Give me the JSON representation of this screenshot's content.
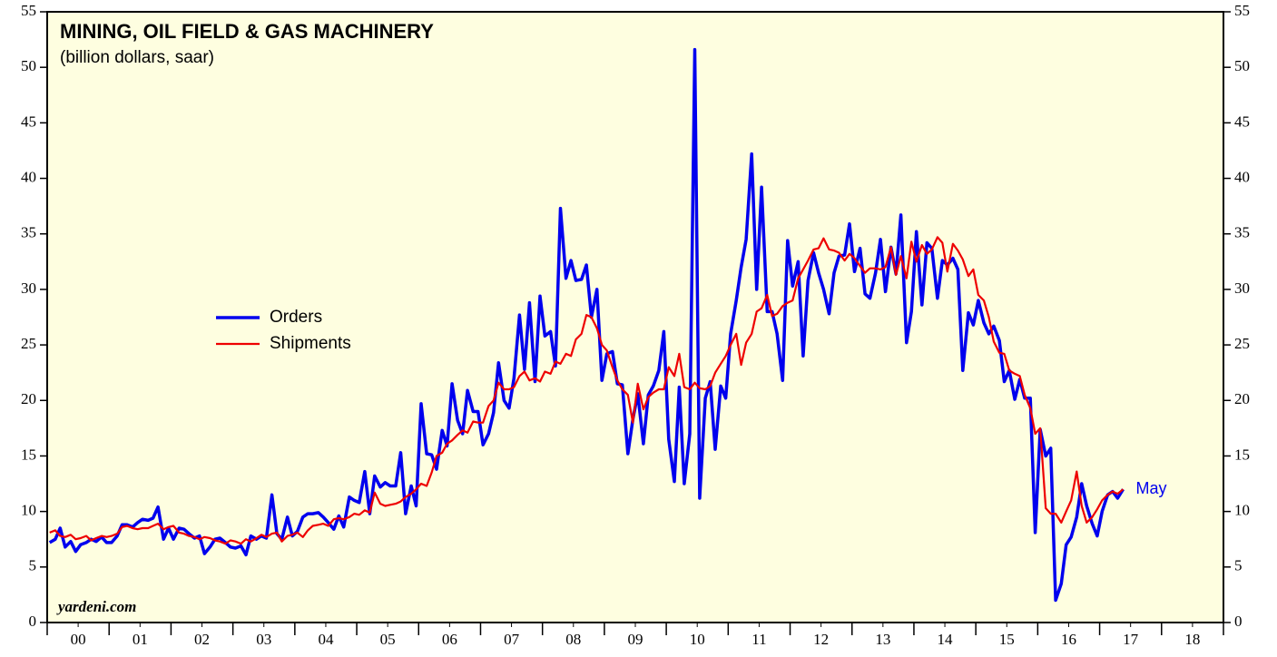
{
  "chart_data": {
    "type": "line",
    "title": "MINING, OIL FIELD & GAS MACHINERY",
    "subtitle": "(billion dollars, saar)",
    "annotations": [
      "yardeni.com",
      "May"
    ],
    "background": "#fefee0",
    "legend": "upper left",
    "xlim": [
      2000,
      2019
    ],
    "xticks": [
      {
        "value": 2000.5,
        "label": "00"
      },
      {
        "value": 2001.5,
        "label": "01"
      },
      {
        "value": 2002.5,
        "label": "02"
      },
      {
        "value": 2003.5,
        "label": "03"
      },
      {
        "value": 2004.5,
        "label": "04"
      },
      {
        "value": 2005.5,
        "label": "05"
      },
      {
        "value": 2006.5,
        "label": "06"
      },
      {
        "value": 2007.5,
        "label": "07"
      },
      {
        "value": 2008.5,
        "label": "08"
      },
      {
        "value": 2009.5,
        "label": "09"
      },
      {
        "value": 2010.5,
        "label": "10"
      },
      {
        "value": 2011.5,
        "label": "11"
      },
      {
        "value": 2012.5,
        "label": "12"
      },
      {
        "value": 2013.5,
        "label": "13"
      },
      {
        "value": 2014.5,
        "label": "14"
      },
      {
        "value": 2015.5,
        "label": "15"
      },
      {
        "value": 2016.5,
        "label": "16"
      },
      {
        "value": 2017.5,
        "label": "17"
      },
      {
        "value": 2018.5,
        "label": "18"
      }
    ],
    "xminor": [
      2000,
      2001,
      2002,
      2003,
      2004,
      2005,
      2006,
      2007,
      2008,
      2009,
      2010,
      2011,
      2012,
      2013,
      2014,
      2015,
      2016,
      2017,
      2018,
      2019
    ],
    "ylim": [
      0,
      55
    ],
    "yticks": [
      0,
      5,
      10,
      15,
      20,
      25,
      30,
      35,
      40,
      45,
      50,
      55
    ],
    "x": [
      2000.04,
      2000.13,
      2000.21,
      2000.29,
      2000.38,
      2000.46,
      2000.54,
      2000.63,
      2000.71,
      2000.79,
      2000.88,
      2000.96,
      2001.04,
      2001.13,
      2001.21,
      2001.29,
      2001.38,
      2001.46,
      2001.54,
      2001.63,
      2001.71,
      2001.79,
      2001.88,
      2001.96,
      2002.04,
      2002.13,
      2002.21,
      2002.29,
      2002.38,
      2002.46,
      2002.54,
      2002.63,
      2002.71,
      2002.79,
      2002.88,
      2002.96,
      2003.04,
      2003.13,
      2003.21,
      2003.29,
      2003.38,
      2003.46,
      2003.54,
      2003.63,
      2003.71,
      2003.79,
      2003.88,
      2003.96,
      2004.04,
      2004.13,
      2004.21,
      2004.29,
      2004.38,
      2004.46,
      2004.54,
      2004.63,
      2004.71,
      2004.79,
      2004.88,
      2004.96,
      2005.04,
      2005.13,
      2005.21,
      2005.29,
      2005.38,
      2005.46,
      2005.54,
      2005.63,
      2005.71,
      2005.79,
      2005.88,
      2005.96,
      2006.04,
      2006.13,
      2006.21,
      2006.29,
      2006.38,
      2006.46,
      2006.54,
      2006.63,
      2006.71,
      2006.79,
      2006.88,
      2006.96,
      2007.04,
      2007.13,
      2007.21,
      2007.29,
      2007.38,
      2007.46,
      2007.54,
      2007.63,
      2007.71,
      2007.79,
      2007.88,
      2007.96,
      2008.04,
      2008.13,
      2008.21,
      2008.29,
      2008.38,
      2008.46,
      2008.54,
      2008.63,
      2008.71,
      2008.79,
      2008.88,
      2008.96,
      2009.04,
      2009.13,
      2009.21,
      2009.29,
      2009.38,
      2009.46,
      2009.54,
      2009.63,
      2009.71,
      2009.79,
      2009.88,
      2009.96,
      2010.04,
      2010.13,
      2010.21,
      2010.29,
      2010.38,
      2010.46,
      2010.54,
      2010.63,
      2010.71,
      2010.79,
      2010.88,
      2010.96,
      2011.04,
      2011.13,
      2011.21,
      2011.29,
      2011.38,
      2011.46,
      2011.54,
      2011.63,
      2011.71,
      2011.79,
      2011.88,
      2011.96,
      2012.04,
      2012.13,
      2012.21,
      2012.29,
      2012.38,
      2012.46,
      2012.54,
      2012.63,
      2012.71,
      2012.79,
      2012.88,
      2012.96,
      2013.04,
      2013.13,
      2013.21,
      2013.29,
      2013.38,
      2013.46,
      2013.54,
      2013.63,
      2013.71,
      2013.79,
      2013.88,
      2013.96,
      2014.04,
      2014.13,
      2014.21,
      2014.29,
      2014.38,
      2014.46,
      2014.54,
      2014.63,
      2014.71,
      2014.79,
      2014.88,
      2014.96,
      2015.04,
      2015.13,
      2015.21,
      2015.29,
      2015.38,
      2015.46,
      2015.54,
      2015.63,
      2015.71,
      2015.79,
      2015.88,
      2015.96,
      2016.04,
      2016.13,
      2016.21,
      2016.29,
      2016.38,
      2016.46,
      2016.54,
      2016.63,
      2016.71,
      2016.79,
      2016.88,
      2016.96,
      2017.04,
      2017.13,
      2017.21,
      2017.29,
      2017.38
    ],
    "series": [
      {
        "name": "Orders",
        "color": "#0000ee",
        "values": [
          7.2,
          7.5,
          8.5,
          6.8,
          7.3,
          6.4,
          7.0,
          7.2,
          7.5,
          7.3,
          7.7,
          7.2,
          7.2,
          7.8,
          8.8,
          8.8,
          8.6,
          9.0,
          9.3,
          9.2,
          9.4,
          10.4,
          7.5,
          8.5,
          7.5,
          8.5,
          8.4,
          8.0,
          7.6,
          7.8,
          6.2,
          6.8,
          7.5,
          7.6,
          7.2,
          6.8,
          6.7,
          6.9,
          6.1,
          7.8,
          7.5,
          7.8,
          7.6,
          11.5,
          8.0,
          7.5,
          9.5,
          7.8,
          8.2,
          9.5,
          9.8,
          9.8,
          9.9,
          9.5,
          9.0,
          8.4,
          9.6,
          8.6,
          11.3,
          11.0,
          10.8,
          13.6,
          9.8,
          13.2,
          12.2,
          12.6,
          12.3,
          12.3,
          15.3,
          9.8,
          12.3,
          10.5,
          19.7,
          15.2,
          15.1,
          13.8,
          17.3,
          15.9,
          21.5,
          18.2,
          17.0,
          20.9,
          19.0,
          19.0,
          16.0,
          17.0,
          18.9,
          23.4,
          20.0,
          19.3,
          22.0,
          27.7,
          22.8,
          28.8,
          21.7,
          29.4,
          25.8,
          26.2,
          23.1,
          37.3,
          31.0,
          32.6,
          30.8,
          30.9,
          32.2,
          27.5,
          30.0,
          21.8,
          24.2,
          24.4,
          21.5,
          21.4,
          15.2,
          18.3,
          20.6,
          16.1,
          20.5,
          21.3,
          22.7,
          26.2,
          16.5,
          12.7,
          21.2,
          12.5,
          17.0,
          51.6,
          11.2,
          20.2,
          21.7,
          15.6,
          21.3,
          20.2,
          26.0,
          29.0,
          32.0,
          34.5,
          42.2,
          30.0,
          39.2,
          28.0,
          28.0,
          26.0,
          21.8,
          34.4,
          30.3,
          32.5,
          24.0,
          30.8,
          33.3,
          31.5,
          30.0,
          27.8,
          31.5,
          33.0,
          33.1,
          35.9,
          31.6,
          33.7,
          29.6,
          29.2,
          31.5,
          34.5,
          29.8,
          33.8,
          31.4,
          36.7,
          25.2,
          28.0,
          35.2,
          28.6,
          34.2,
          33.7,
          29.2,
          32.6,
          32.2,
          32.8,
          31.8,
          22.7,
          27.9,
          26.8,
          29.0,
          27.0,
          26.0,
          26.7,
          25.4,
          21.7,
          22.7,
          20.1,
          21.9,
          20.2,
          20.2,
          8.1,
          17.4,
          15.0,
          15.7,
          2.0,
          3.5,
          7.0,
          7.7,
          9.5,
          12.5,
          10.5,
          8.9,
          7.8,
          10.0,
          11.5,
          11.8,
          11.2,
          12.0
        ]
      },
      {
        "name": "Shipments",
        "color": "#ee0000",
        "values": [
          8.1,
          8.3,
          7.8,
          7.7,
          7.9,
          7.5,
          7.6,
          7.8,
          7.4,
          7.6,
          7.8,
          7.7,
          7.8,
          8.0,
          8.6,
          8.7,
          8.5,
          8.4,
          8.5,
          8.5,
          8.7,
          8.9,
          8.4,
          8.6,
          8.7,
          8.1,
          8.0,
          7.8,
          7.7,
          7.5,
          7.7,
          7.6,
          7.4,
          7.3,
          7.1,
          7.4,
          7.3,
          7.1,
          7.5,
          7.3,
          7.6,
          7.9,
          7.7,
          8.0,
          8.1,
          7.3,
          7.8,
          7.9,
          8.1,
          7.7,
          8.3,
          8.7,
          8.8,
          8.9,
          8.7,
          9.3,
          9.4,
          9.3,
          9.5,
          9.8,
          9.7,
          10.1,
          9.9,
          11.7,
          10.7,
          10.5,
          10.6,
          10.7,
          10.9,
          11.3,
          11.6,
          12.0,
          12.5,
          12.3,
          13.5,
          15.0,
          15.3,
          16.1,
          16.4,
          16.9,
          17.3,
          17.1,
          18.1,
          18.0,
          18.0,
          19.5,
          20.0,
          21.6,
          21.0,
          21.0,
          21.2,
          22.2,
          22.6,
          21.8,
          22.0,
          21.7,
          22.6,
          22.4,
          23.5,
          23.3,
          24.2,
          24.0,
          25.5,
          26.0,
          27.7,
          27.5,
          26.5,
          25.0,
          24.5,
          23.0,
          21.8,
          21.0,
          20.5,
          18.0,
          21.5,
          19.2,
          20.3,
          20.7,
          21.0,
          21.0,
          23.0,
          22.2,
          24.2,
          21.2,
          21.0,
          21.6,
          21.1,
          21.0,
          21.3,
          22.5,
          23.3,
          24.0,
          25.0,
          26.0,
          23.2,
          25.2,
          26.0,
          28.0,
          28.3,
          29.5,
          27.6,
          27.8,
          28.5,
          28.8,
          29.0,
          31.0,
          31.8,
          32.6,
          33.6,
          33.7,
          34.6,
          33.6,
          33.5,
          33.3,
          32.6,
          33.2,
          32.8,
          32.1,
          31.5,
          31.9,
          31.9,
          31.8,
          32.0,
          33.8,
          31.3,
          33.0,
          31.0,
          34.3,
          32.5,
          34.0,
          33.2,
          33.6,
          34.7,
          34.2,
          31.6,
          34.1,
          33.5,
          32.7,
          31.2,
          31.8,
          29.5,
          29.0,
          27.5,
          25.3,
          24.3,
          24.2,
          22.7,
          22.4,
          22.2,
          20.5,
          19.3,
          17.0,
          17.5,
          10.3,
          9.8,
          9.8,
          9.0,
          10.0,
          11.0,
          13.6,
          10.5,
          9.0,
          9.5,
          10.2,
          11.0,
          11.5,
          11.8,
          11.6,
          12.0
        ]
      }
    ]
  }
}
